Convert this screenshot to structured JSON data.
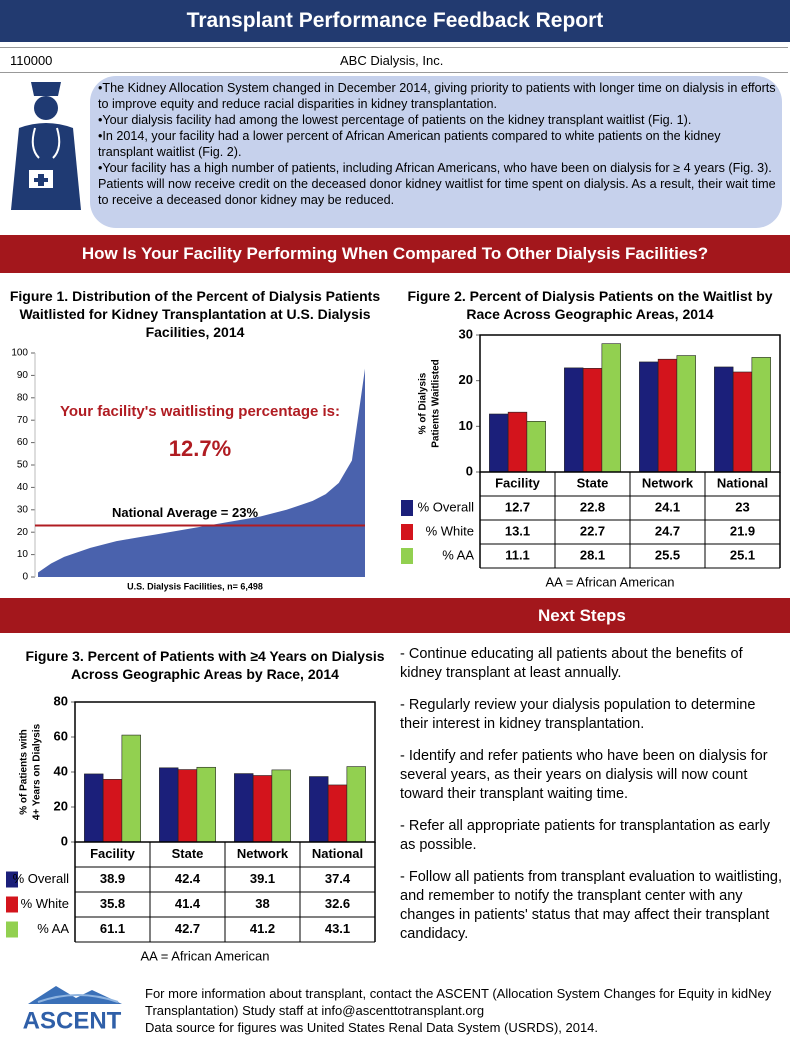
{
  "header": {
    "title": "Transplant Performance Feedback Report",
    "facility_id": "110000",
    "facility_name": "ABC Dialysis, Inc."
  },
  "bullets": [
    "•The Kidney Allocation System changed in December 2014, giving priority to patients with longer time on dialysis in efforts to improve equity and reduce racial disparities in kidney transplantation.",
    "•Your dialysis facility had among the lowest percentage of patients on the kidney transplant waitlist (Fig. 1).",
    "•In 2014, your facility had a lower percent of African American patients compared to white patients on the kidney transplant waitlist (Fig. 2).",
    "•Your facility has a high number of patients, including African Americans, who have been on dialysis for ≥ 4 years (Fig. 3). Patients will now receive credit on the deceased donor kidney waitlist for time spent on dialysis. As a result, their wait time to receive a deceased donor kidney may be reduced."
  ],
  "section_title": "How Is Your Facility Performing When Compared To Other Dialysis Facilities?",
  "chart_data": [
    {
      "type": "area",
      "title": "Figure 1. Distribution of the Percent of Dialysis Patients Waitlisted for Kidney Transplantation at U.S. Dialysis Facilities, 2014",
      "x_label": "U.S. Dialysis Facilities, n= 6,498",
      "categories": [
        null,
        null,
        null,
        null,
        null,
        null,
        null,
        null,
        null,
        null,
        null,
        null,
        null,
        null,
        null,
        null,
        null,
        null,
        null,
        null,
        null,
        null,
        null,
        null,
        null,
        null
      ],
      "values": [
        2,
        6,
        9,
        11,
        13,
        14.5,
        16,
        17,
        18,
        19,
        20,
        21,
        22,
        23,
        24,
        25,
        26,
        27,
        28.5,
        30,
        32,
        34,
        37,
        42,
        52,
        93
      ],
      "color": "#4a62ad",
      "ylim": [
        0,
        100
      ],
      "yticks": [
        0,
        10,
        20,
        30,
        40,
        50,
        60,
        70,
        80,
        90,
        100
      ],
      "annotations": [
        "Your facility's waitlisting percentage is:",
        "12.7%"
      ],
      "reference_line": {
        "value": 23,
        "label": "National Average = 23%",
        "color": "#b01c22"
      }
    },
    {
      "type": "bar",
      "title": "Figure 2. Percent of Dialysis Patients on the Waitlist by Race Across Geographic Areas, 2014",
      "y_label": [
        "% of Dialysis",
        "Patients Waitlisted"
      ],
      "categories": [
        "Facility",
        "State",
        "Network",
        "National"
      ],
      "series": [
        {
          "name": "% Overall",
          "color": "#1b1f7a",
          "values": [
            12.7,
            22.8,
            24.1,
            23
          ]
        },
        {
          "name": "% White",
          "color": "#d3141c",
          "values": [
            13.1,
            22.7,
            24.7,
            21.9
          ]
        },
        {
          "name": "% AA",
          "color": "#92d050",
          "values": [
            11.1,
            28.1,
            25.5,
            25.1
          ]
        }
      ],
      "ylim": [
        0,
        30
      ],
      "yticks": [
        0,
        10,
        20,
        30
      ],
      "note": "AA = African American"
    },
    {
      "type": "bar",
      "title": "Figure 3.  Percent of Patients with ≥4 Years on Dialysis Across Geographic Areas by Race, 2014",
      "y_label": [
        "% of Patients with",
        "4+ Years on Dialysis"
      ],
      "categories": [
        "Facility",
        "State",
        "Network",
        "National"
      ],
      "series": [
        {
          "name": "% Overall",
          "color": "#1b1f7a",
          "values": [
            38.9,
            42.4,
            39.1,
            37.4
          ]
        },
        {
          "name": "% White",
          "color": "#d3141c",
          "values": [
            35.8,
            41.4,
            38,
            32.6
          ]
        },
        {
          "name": "% AA",
          "color": "#92d050",
          "values": [
            61.1,
            42.7,
            41.2,
            43.1
          ]
        }
      ],
      "ylim": [
        0,
        80
      ],
      "yticks": [
        0,
        20,
        40,
        60,
        80
      ],
      "note": "AA = African American"
    }
  ],
  "next_steps": {
    "title": "Next Steps",
    "items": [
      "- Continue educating all patients about the benefits of kidney transplant at least annually.",
      "- Regularly review your dialysis population to determine their interest in kidney transplantation.",
      "- Identify and refer patients who have been on dialysis for several years, as their years on dialysis will now count toward their transplant waiting time.",
      "- Refer all appropriate patients for transplantation as early as possible.",
      "- Follow all patients from transplant evaluation to waitlisting, and remember to notify the transplant center with any changes in patients' status that may affect their transplant candidacy."
    ]
  },
  "footer": {
    "logo": "ASCENT",
    "contact": "For more information about transplant, contact the ASCENT (Allocation System Changes for Equity in kidNey Transplantation) Study staff at info@ascenttotransplant.org",
    "source": "Data source for figures was United States Renal Data System (USRDS), 2014."
  }
}
